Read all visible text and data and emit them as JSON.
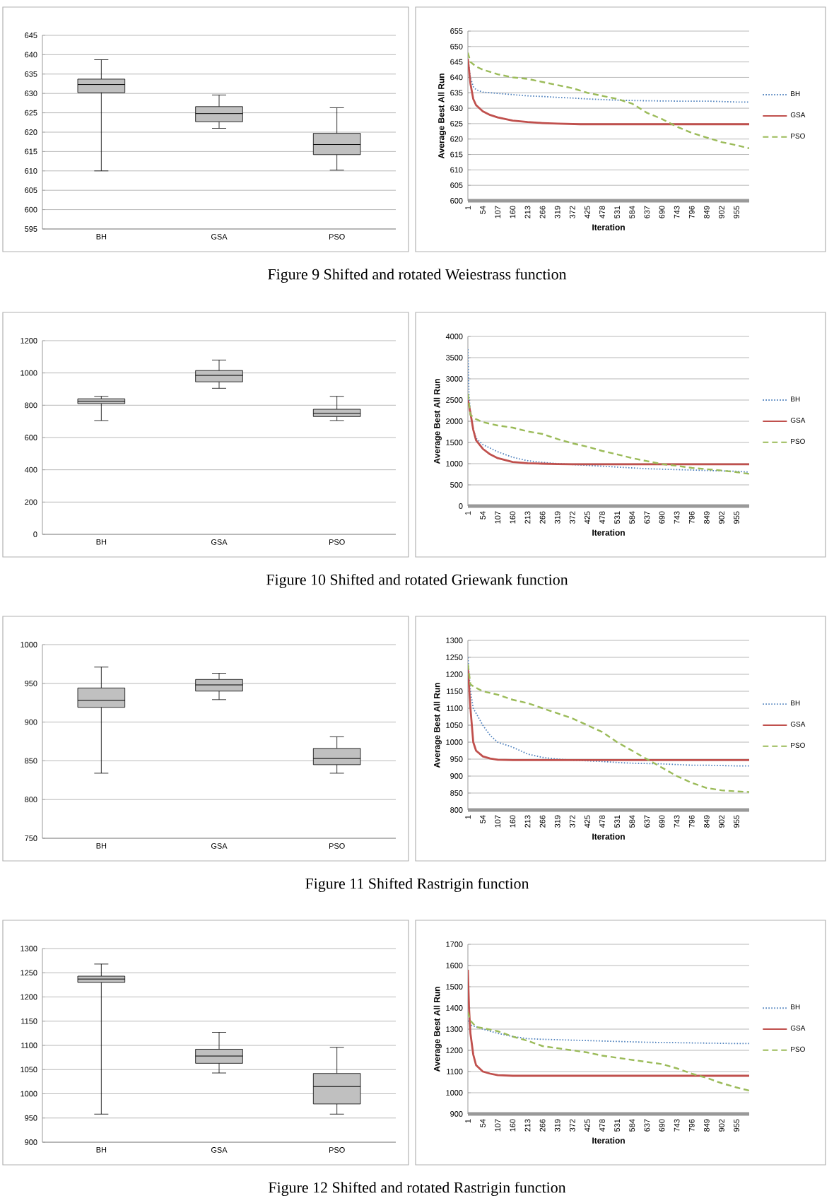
{
  "chart_data": [
    {
      "type": "box",
      "categories": [
        "BH",
        "GSA",
        "PSO"
      ],
      "color": "#c0c0c0",
      "ylim": [
        595,
        645
      ],
      "yticks": [
        595,
        600,
        605,
        610,
        615,
        620,
        625,
        630,
        635,
        640,
        645
      ],
      "grid": "y",
      "annotations": [
        "Figure 9 Shifted and rotated Weiestrass function"
      ],
      "boxes": [
        {
          "low": 610,
          "q1": 630.2,
          "median": 632.3,
          "q3": 633.7,
          "high": 638.7
        },
        {
          "low": 621,
          "q1": 622.7,
          "median": 624.8,
          "q3": 626.6,
          "high": 629.6
        },
        {
          "low": 610.2,
          "q1": 614.2,
          "median": 616.8,
          "q3": 619.7,
          "high": 626.3
        }
      ]
    },
    {
      "type": "line",
      "xlabel": "Iteration",
      "ylabel": "Average Best All Run",
      "xlim": [
        1,
        1000
      ],
      "xticks": [
        1,
        54,
        107,
        160,
        213,
        266,
        319,
        372,
        425,
        478,
        531,
        584,
        637,
        690,
        743,
        796,
        849,
        902,
        955
      ],
      "ylim": [
        600,
        655
      ],
      "yticks": [
        600,
        605,
        610,
        615,
        620,
        625,
        630,
        635,
        640,
        645,
        650,
        655
      ],
      "grid": "y",
      "legend": "right",
      "series": [
        {
          "name": "BH",
          "color": "#4f81bd",
          "line_style": "dotted",
          "x": [
            1,
            10,
            20,
            30,
            54,
            107,
            160,
            213,
            266,
            319,
            372,
            425,
            478,
            531,
            584,
            637,
            743,
            849,
            955,
            1000
          ],
          "values": [
            646,
            640,
            637,
            636,
            635.2,
            634.8,
            634.4,
            634,
            633.8,
            633.5,
            633.3,
            633,
            632.8,
            632.6,
            632.5,
            632.4,
            632.3,
            632.3,
            632,
            632
          ]
        },
        {
          "name": "GSA",
          "color": "#c0504d",
          "line_style": "solid",
          "x": [
            1,
            10,
            20,
            30,
            54,
            80,
            107,
            160,
            213,
            266,
            319,
            400,
            1000
          ],
          "values": [
            646,
            638,
            633,
            631,
            629,
            627.8,
            627,
            626,
            625.5,
            625.2,
            625,
            624.8,
            624.8
          ]
        },
        {
          "name": "PSO",
          "color": "#9bbb59",
          "line_style": "dashed",
          "x": [
            1,
            10,
            30,
            54,
            107,
            160,
            213,
            266,
            319,
            372,
            425,
            478,
            531,
            584,
            637,
            690,
            743,
            796,
            849,
            902,
            955,
            1000
          ],
          "values": [
            648,
            645,
            643.5,
            642.5,
            641,
            640,
            639.5,
            638.5,
            637.5,
            636.5,
            635,
            634,
            633,
            631.5,
            628.5,
            626.5,
            624,
            622,
            620.5,
            619,
            618,
            617
          ]
        }
      ]
    },
    {
      "type": "box",
      "categories": [
        "BH",
        "GSA",
        "PSO"
      ],
      "color": "#c0c0c0",
      "ylim": [
        0,
        1200
      ],
      "yticks": [
        0,
        200,
        400,
        600,
        800,
        1000,
        1200
      ],
      "grid": "y",
      "annotations": [
        "Figure 10 Shifted and rotated Griewank function"
      ],
      "boxes": [
        {
          "low": 705,
          "q1": 810,
          "median": 825,
          "q3": 840,
          "high": 855
        },
        {
          "low": 905,
          "q1": 945,
          "median": 985,
          "q3": 1015,
          "high": 1080
        },
        {
          "low": 705,
          "q1": 730,
          "median": 750,
          "q3": 775,
          "high": 855
        }
      ]
    },
    {
      "type": "line",
      "xlabel": "Iteration",
      "ylabel": "Average Best All Run",
      "xlim": [
        1,
        1000
      ],
      "xticks": [
        1,
        54,
        107,
        160,
        213,
        266,
        319,
        372,
        425,
        478,
        531,
        584,
        637,
        690,
        743,
        796,
        849,
        902,
        955
      ],
      "ylim": [
        0,
        4000
      ],
      "yticks": [
        0,
        500,
        1000,
        1500,
        2000,
        2500,
        3000,
        3500,
        4000
      ],
      "grid": "y",
      "legend": "right",
      "series": [
        {
          "name": "BH",
          "color": "#4f81bd",
          "line_style": "dotted",
          "x": [
            1,
            5,
            10,
            20,
            30,
            54,
            107,
            160,
            213,
            266,
            319,
            372,
            425,
            478,
            531,
            584,
            637,
            690,
            743,
            796,
            849,
            902,
            955,
            1000
          ],
          "values": [
            3700,
            2600,
            2200,
            1800,
            1600,
            1450,
            1280,
            1150,
            1070,
            1030,
            1000,
            980,
            960,
            940,
            920,
            900,
            880,
            870,
            860,
            850,
            840,
            830,
            820,
            800
          ]
        },
        {
          "name": "GSA",
          "color": "#c0504d",
          "line_style": "solid",
          "x": [
            1,
            10,
            20,
            30,
            54,
            80,
            107,
            160,
            213,
            266,
            319,
            372,
            1000
          ],
          "values": [
            2500,
            2200,
            1800,
            1550,
            1350,
            1220,
            1130,
            1040,
            1010,
            1000,
            990,
            985,
            985
          ]
        },
        {
          "name": "PSO",
          "color": "#9bbb59",
          "line_style": "dashed",
          "x": [
            1,
            10,
            30,
            54,
            107,
            160,
            213,
            266,
            319,
            372,
            425,
            478,
            531,
            584,
            637,
            690,
            743,
            796,
            849,
            902,
            955,
            1000
          ],
          "values": [
            2650,
            2150,
            2050,
            1980,
            1900,
            1850,
            1760,
            1700,
            1580,
            1480,
            1400,
            1300,
            1220,
            1130,
            1060,
            990,
            950,
            900,
            870,
            840,
            800,
            760
          ]
        }
      ]
    },
    {
      "type": "box",
      "categories": [
        "BH",
        "GSA",
        "PSO"
      ],
      "color": "#c0c0c0",
      "ylim": [
        750,
        1000
      ],
      "yticks": [
        750,
        800,
        850,
        900,
        950,
        1000
      ],
      "grid": "y",
      "annotations": [
        "Figure 11 Shifted Rastrigin function"
      ],
      "boxes": [
        {
          "low": 834,
          "q1": 919,
          "median": 928,
          "q3": 944,
          "high": 971
        },
        {
          "low": 929,
          "q1": 940,
          "median": 948,
          "q3": 955,
          "high": 963
        },
        {
          "low": 834,
          "q1": 845,
          "median": 853,
          "q3": 866,
          "high": 881
        }
      ]
    },
    {
      "type": "line",
      "xlabel": "Iteration",
      "ylabel": "Average Best All Run",
      "xlim": [
        1,
        1000
      ],
      "xticks": [
        1,
        54,
        107,
        160,
        213,
        266,
        319,
        372,
        425,
        478,
        531,
        584,
        637,
        690,
        743,
        796,
        849,
        902,
        955
      ],
      "ylim": [
        800,
        1300
      ],
      "yticks": [
        800,
        850,
        900,
        950,
        1000,
        1050,
        1100,
        1150,
        1200,
        1250,
        1300
      ],
      "grid": "y",
      "legend": "right",
      "series": [
        {
          "name": "BH",
          "color": "#4f81bd",
          "line_style": "dotted",
          "x": [
            1,
            10,
            20,
            54,
            80,
            107,
            160,
            213,
            266,
            319,
            372,
            425,
            478,
            531,
            584,
            637,
            690,
            743,
            796,
            849,
            902,
            955,
            1000
          ],
          "values": [
            1250,
            1150,
            1100,
            1050,
            1020,
            1000,
            985,
            965,
            955,
            950,
            947,
            945,
            943,
            940,
            938,
            937,
            936,
            934,
            932,
            932,
            931,
            930,
            930
          ]
        },
        {
          "name": "GSA",
          "color": "#c0504d",
          "line_style": "solid",
          "x": [
            1,
            10,
            20,
            30,
            54,
            80,
            107,
            160,
            1000
          ],
          "values": [
            1220,
            1100,
            1000,
            975,
            958,
            952,
            948,
            947,
            947
          ]
        },
        {
          "name": "PSO",
          "color": "#9bbb59",
          "line_style": "dashed",
          "x": [
            1,
            10,
            30,
            54,
            107,
            160,
            213,
            266,
            319,
            372,
            425,
            478,
            531,
            584,
            637,
            690,
            743,
            796,
            849,
            902,
            955,
            1000
          ],
          "values": [
            1230,
            1170,
            1160,
            1150,
            1140,
            1125,
            1115,
            1100,
            1085,
            1070,
            1050,
            1030,
            1000,
            975,
            950,
            925,
            900,
            880,
            865,
            858,
            855,
            853
          ]
        }
      ]
    },
    {
      "type": "box",
      "categories": [
        "BH",
        "GSA",
        "PSO"
      ],
      "color": "#c0c0c0",
      "ylim": [
        900,
        1300
      ],
      "yticks": [
        900,
        950,
        1000,
        1050,
        1100,
        1150,
        1200,
        1250,
        1300
      ],
      "grid": "y",
      "annotations": [
        "Figure 12 Shifted and rotated Rastrigin function"
      ],
      "boxes": [
        {
          "low": 958,
          "q1": 1230,
          "median": 1237,
          "q3": 1243,
          "high": 1268
        },
        {
          "low": 1043,
          "q1": 1063,
          "median": 1078,
          "q3": 1092,
          "high": 1127
        },
        {
          "low": 958,
          "q1": 979,
          "median": 1015,
          "q3": 1042,
          "high": 1096
        }
      ]
    },
    {
      "type": "line",
      "xlabel": "Iteration",
      "ylabel": "Average Best All Run",
      "xlim": [
        1,
        1000
      ],
      "xticks": [
        1,
        54,
        107,
        160,
        213,
        266,
        319,
        372,
        425,
        478,
        531,
        584,
        637,
        690,
        743,
        796,
        849,
        902,
        955
      ],
      "ylim": [
        900,
        1700
      ],
      "yticks": [
        900,
        1000,
        1100,
        1200,
        1300,
        1400,
        1500,
        1600,
        1700
      ],
      "grid": "y",
      "legend": "right",
      "series": [
        {
          "name": "BH",
          "color": "#4f81bd",
          "line_style": "dotted",
          "x": [
            1,
            10,
            54,
            107,
            160,
            213,
            266,
            319,
            372,
            425,
            478,
            531,
            584,
            637,
            690,
            743,
            796,
            849,
            902,
            955,
            1000
          ],
          "values": [
            1340,
            1320,
            1300,
            1280,
            1265,
            1255,
            1252,
            1250,
            1248,
            1246,
            1244,
            1242,
            1240,
            1238,
            1237,
            1236,
            1235,
            1234,
            1233,
            1232,
            1232
          ]
        },
        {
          "name": "GSA",
          "color": "#c0504d",
          "line_style": "solid",
          "x": [
            1,
            5,
            10,
            20,
            30,
            54,
            80,
            107,
            160,
            1000
          ],
          "values": [
            1580,
            1400,
            1280,
            1180,
            1130,
            1100,
            1090,
            1083,
            1080,
            1080
          ]
        },
        {
          "name": "PSO",
          "color": "#9bbb59",
          "line_style": "dashed",
          "x": [
            1,
            10,
            30,
            54,
            107,
            160,
            213,
            266,
            319,
            372,
            425,
            478,
            531,
            584,
            637,
            690,
            743,
            796,
            849,
            902,
            955,
            1000
          ],
          "values": [
            1380,
            1340,
            1310,
            1305,
            1290,
            1265,
            1245,
            1220,
            1210,
            1200,
            1190,
            1175,
            1165,
            1155,
            1145,
            1135,
            1115,
            1090,
            1070,
            1045,
            1025,
            1010
          ]
        }
      ]
    }
  ]
}
